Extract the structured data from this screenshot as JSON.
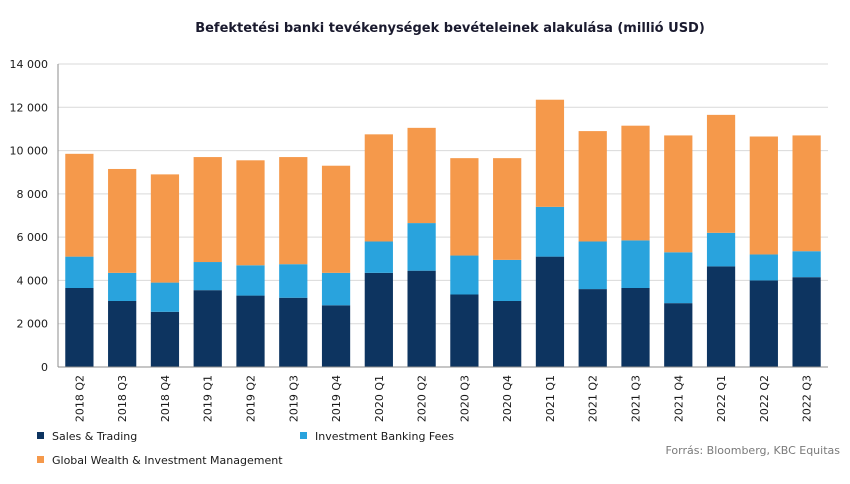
{
  "chart_data": {
    "type": "bar",
    "stacked": true,
    "title": "Befektetési banki tevékenységek bevételeinek  alakulása (millió USD)",
    "xlabel": "",
    "ylabel": "",
    "ylim": [
      0,
      14000
    ],
    "yticks": [
      0,
      2000,
      4000,
      6000,
      8000,
      10000,
      12000,
      14000
    ],
    "ytick_labels": [
      "0",
      "2 000",
      "4 000",
      "6 000",
      "8 000",
      "10 000",
      "12 000",
      "14 000"
    ],
    "grid": true,
    "legend_position": "bottom",
    "categories": [
      "2018 Q2",
      "2018 Q3",
      "2018 Q4",
      "2019 Q1",
      "2019 Q2",
      "2019 Q3",
      "2019 Q4",
      "2020 Q1",
      "2020 Q2",
      "2020 Q3",
      "2020 Q4",
      "2021 Q1",
      "2021 Q2",
      "2021 Q3",
      "2021 Q4",
      "2022 Q1",
      "2022 Q2",
      "2022 Q3"
    ],
    "series": [
      {
        "name": "Sales & Trading",
        "color": "#0d3460",
        "values": [
          3650,
          3050,
          2550,
          3550,
          3300,
          3200,
          2850,
          4350,
          4450,
          3350,
          3050,
          5100,
          3600,
          3650,
          2950,
          4650,
          4000,
          4150
        ]
      },
      {
        "name": "Investment Banking Fees",
        "color": "#29a3dd",
        "values": [
          1450,
          1300,
          1350,
          1300,
          1400,
          1550,
          1500,
          1450,
          2200,
          1800,
          1900,
          2300,
          2200,
          2200,
          2350,
          1550,
          1200,
          1200
        ]
      },
      {
        "name": "Global Wealth & Investment Management",
        "color": "#f5994b",
        "values": [
          4750,
          4800,
          5000,
          4850,
          4850,
          4950,
          4950,
          4950,
          4400,
          4500,
          4700,
          4950,
          5100,
          5300,
          5400,
          5450,
          5450,
          5350
        ]
      }
    ],
    "source": "Forrás: Bloomberg,  KBC Equitas"
  }
}
